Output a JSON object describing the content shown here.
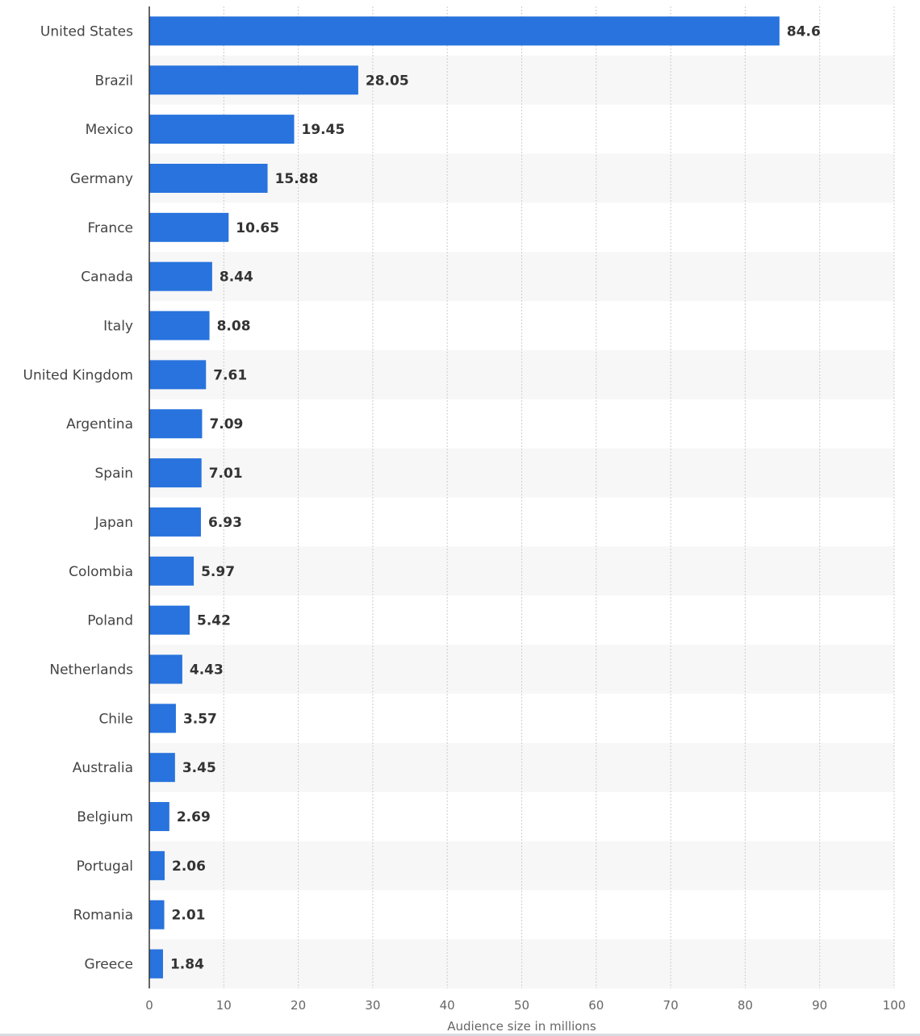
{
  "chart_data": {
    "type": "bar",
    "orientation": "horizontal",
    "categories": [
      "United States",
      "Brazil",
      "Mexico",
      "Germany",
      "France",
      "Canada",
      "Italy",
      "United Kingdom",
      "Argentina",
      "Spain",
      "Japan",
      "Colombia",
      "Poland",
      "Netherlands",
      "Chile",
      "Australia",
      "Belgium",
      "Portugal",
      "Romania",
      "Greece"
    ],
    "values": [
      84.6,
      28.05,
      19.45,
      15.88,
      10.65,
      8.44,
      8.08,
      7.61,
      7.09,
      7.01,
      6.93,
      5.97,
      5.42,
      4.43,
      3.57,
      3.45,
      2.69,
      2.06,
      2.01,
      1.84
    ],
    "value_labels": [
      "84.6",
      "28.05",
      "19.45",
      "15.88",
      "10.65",
      "8.44",
      "8.08",
      "7.61",
      "7.09",
      "7.01",
      "6.93",
      "5.97",
      "5.42",
      "4.43",
      "3.57",
      "3.45",
      "2.69",
      "2.06",
      "2.01",
      "1.84"
    ],
    "xlabel": "Audience size in millions",
    "ylabel": "",
    "xlim": [
      0,
      100
    ],
    "xticks": [
      0,
      10,
      20,
      30,
      40,
      50,
      60,
      70,
      80,
      90,
      100
    ],
    "grid": true,
    "legend": "none",
    "colors": {
      "bar": "#2873dd",
      "alt_band": "#f7f7f7",
      "grid": "#cccccc",
      "axis": "#333333"
    }
  }
}
